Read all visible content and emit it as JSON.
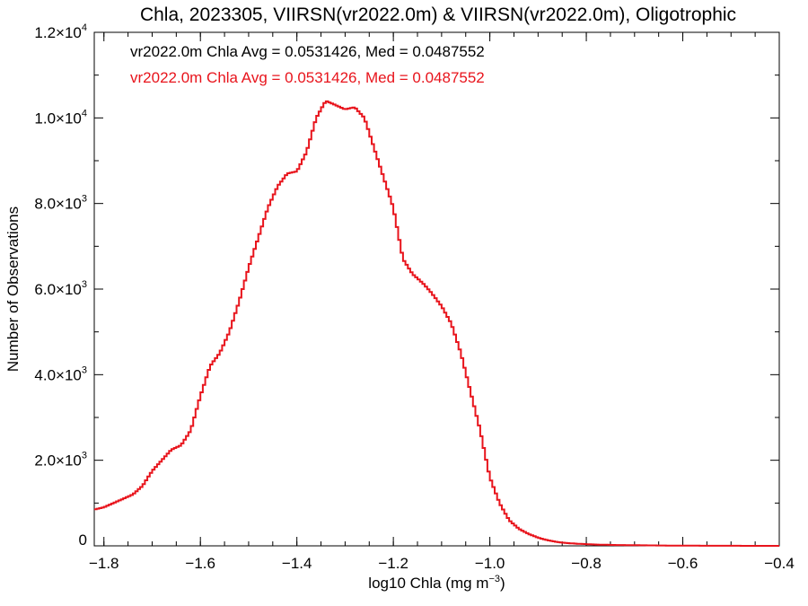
{
  "chart_data": {
    "type": "line",
    "title": "Chla, 2023305, VIIRSN(vr2022.0m) & VIIRSN(vr2022.0m), Oligotrophic",
    "xlabel": "log10 Chla (mg m",
    "xlabel_sup": "−3",
    "xlabel_end": ")",
    "ylabel": "Number of Observations",
    "xlim": [
      -1.82,
      -0.4
    ],
    "ylim": [
      0,
      12000
    ],
    "xticks": [
      -1.8,
      -1.6,
      -1.4,
      -1.2,
      -1.0,
      -0.8,
      -0.6,
      -0.4
    ],
    "xtick_labels": [
      "−1.8",
      "−1.6",
      "−1.4",
      "−1.2",
      "−1.0",
      "−0.8",
      "−0.6",
      "−0.4"
    ],
    "yticks": [
      0,
      2000,
      4000,
      6000,
      8000,
      10000,
      12000
    ],
    "ytick_labels": [
      {
        "base": "0",
        "exp": ""
      },
      {
        "base": "2.0×10",
        "exp": "3"
      },
      {
        "base": "4.0×10",
        "exp": "3"
      },
      {
        "base": "6.0×10",
        "exp": "3"
      },
      {
        "base": "8.0×10",
        "exp": "3"
      },
      {
        "base": "1.0×10",
        "exp": "4"
      },
      {
        "base": "1.2×10",
        "exp": "4"
      }
    ],
    "legend": [
      {
        "text": "vr2022.0m Chla Avg = 0.0531426, Med = 0.0487552",
        "color": "#000000"
      },
      {
        "text": "vr2022.0m Chla Avg = 0.0531426, Med = 0.0487552",
        "color": "#e8141c"
      }
    ],
    "legend_position": "top-left",
    "series": [
      {
        "color": "#e8141c",
        "style": "step",
        "x": [
          -1.82,
          -1.8,
          -1.78,
          -1.76,
          -1.74,
          -1.72,
          -1.7,
          -1.68,
          -1.66,
          -1.64,
          -1.62,
          -1.6,
          -1.58,
          -1.56,
          -1.54,
          -1.52,
          -1.5,
          -1.48,
          -1.46,
          -1.44,
          -1.42,
          -1.4,
          -1.38,
          -1.36,
          -1.34,
          -1.32,
          -1.3,
          -1.28,
          -1.26,
          -1.24,
          -1.22,
          -1.2,
          -1.18,
          -1.16,
          -1.14,
          -1.12,
          -1.1,
          -1.08,
          -1.06,
          -1.04,
          -1.02,
          -1.0,
          -0.98,
          -0.96,
          -0.94,
          -0.92,
          -0.9,
          -0.88,
          -0.86,
          -0.84,
          -0.82,
          -0.8,
          -0.78,
          -0.76,
          -0.74,
          -0.72,
          -0.7,
          -0.68,
          -0.66,
          -0.64,
          -0.62,
          -0.6,
          -0.58,
          -0.56,
          -0.54,
          -0.52,
          -0.5,
          -0.48,
          -0.46,
          -0.44,
          -0.42,
          -0.4
        ],
        "y": [
          850,
          900,
          1000,
          1100,
          1200,
          1400,
          1750,
          2000,
          2250,
          2350,
          2700,
          3500,
          4200,
          4500,
          5000,
          5700,
          6500,
          7200,
          7900,
          8400,
          8700,
          8750,
          9200,
          10000,
          10400,
          10300,
          10200,
          10250,
          10000,
          9300,
          8600,
          7900,
          6700,
          6350,
          6150,
          5900,
          5600,
          5200,
          4500,
          3600,
          2700,
          1600,
          1000,
          600,
          400,
          280,
          190,
          130,
          90,
          65,
          50,
          40,
          30,
          25,
          20,
          18,
          15,
          12,
          10,
          8,
          6,
          5,
          4,
          3,
          3,
          2,
          2,
          1,
          1,
          0,
          0,
          0
        ]
      }
    ]
  }
}
